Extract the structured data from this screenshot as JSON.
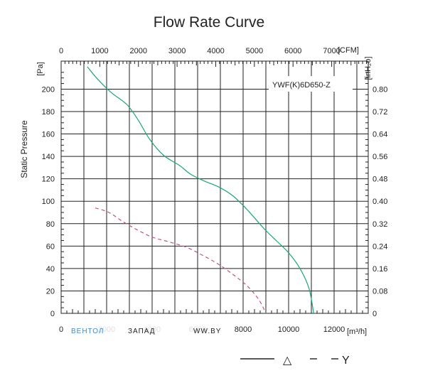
{
  "chart_data": {
    "type": "line",
    "title": "Flow Rate Curve",
    "model": "YWF(K)6D650-Z",
    "ylabel": "Static Pressure",
    "y_unit": "[Pa]",
    "y2_unit": "[inH₂o]",
    "x_unit": "[m³/h]",
    "x2_unit": "[CFM]",
    "xlim": [
      0,
      13500
    ],
    "ylim": [
      0,
      225
    ],
    "x_ticks": [
      "0",
      "2000",
      "4000",
      "6000",
      "8000",
      "10000",
      "12000"
    ],
    "x2_ticks": [
      "0",
      "1000",
      "2000",
      "3000",
      "4000",
      "5000",
      "6000",
      "7000"
    ],
    "y_ticks": [
      "0",
      "20",
      "40",
      "60",
      "80",
      "100",
      "120",
      "140",
      "160",
      "180",
      "200"
    ],
    "y2_ticks": [
      "0",
      "0.08",
      "0.16",
      "0.24",
      "0.32",
      "0.40",
      "0.48",
      "0.56",
      "0.64",
      "0.72",
      "0.80"
    ],
    "grid": true,
    "series": [
      {
        "style": "solid",
        "color": "#1aa870",
        "x": [
          1150,
          1600,
          2200,
          2900,
          3400,
          3900,
          4500,
          5200,
          5700,
          6300,
          7000,
          7600,
          8200,
          8900,
          9500,
          10000,
          10500,
          10900,
          11100
        ],
        "y": [
          220,
          209,
          197,
          186,
          172,
          155,
          141,
          132,
          124,
          118,
          112,
          104,
          92,
          76,
          64,
          54,
          40,
          22,
          0
        ]
      },
      {
        "style": "dashed",
        "color": "#c4508e",
        "x": [
          1500,
          2100,
          2700,
          3300,
          4000,
          4700,
          5500,
          6200,
          6900,
          7600,
          8200,
          8700,
          9000
        ],
        "y": [
          94,
          90,
          82,
          75,
          68,
          64,
          59,
          52,
          44,
          34,
          24,
          12,
          0
        ]
      }
    ]
  },
  "watermark": {
    "part1": "ВЕНТОЛ",
    "part2": "ЗАПАД",
    "part3": "WW.BY"
  },
  "legend": {
    "solid_symbol": "△",
    "dashed_symbol": "Y"
  },
  "colors": {
    "grid": "#222222",
    "solid": "#1aa870",
    "dashed": "#c4508e",
    "watermark_blue": "#3a8ad6",
    "watermark_dark": "#222222"
  }
}
